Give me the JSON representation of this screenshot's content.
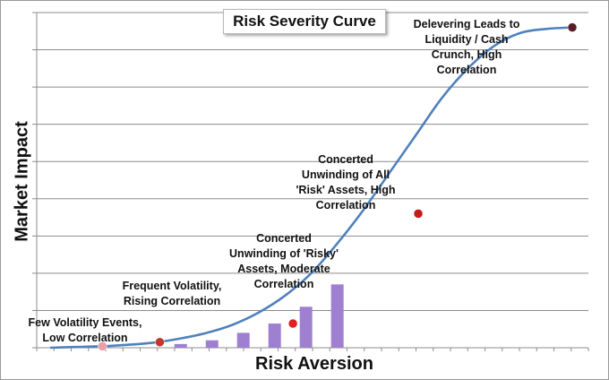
{
  "chart_data": {
    "type": "line",
    "title": "Risk Severity Curve",
    "xlabel": "Risk Aversion",
    "ylabel": "Market Impact",
    "grid": true,
    "legend": "none",
    "ylim": [
      0,
      9
    ],
    "xlim": [
      0,
      10
    ],
    "curve": {
      "color": "#4f81bd",
      "x": [
        0.0,
        0.5,
        1.0,
        1.5,
        2.0,
        2.5,
        3.0,
        3.5,
        4.0,
        4.5,
        5.0,
        5.5,
        6.0,
        6.5,
        7.0,
        7.5,
        8.0,
        8.5,
        9.0,
        9.5,
        10.0
      ],
      "y": [
        0.0,
        0.02,
        0.04,
        0.08,
        0.14,
        0.25,
        0.4,
        0.62,
        0.95,
        1.4,
        2.0,
        2.8,
        3.7,
        4.7,
        5.7,
        6.7,
        7.5,
        8.1,
        8.45,
        8.56,
        8.6
      ]
    },
    "bars": {
      "color": "#9f7fd0",
      "x": [
        2.5,
        3.1,
        3.7,
        4.3,
        4.9,
        5.5
      ],
      "values": [
        0.1,
        0.2,
        0.4,
        0.65,
        1.1,
        1.7
      ]
    },
    "points": [
      {
        "x": 1.0,
        "y": 0.04,
        "color": "#e8a0a8"
      },
      {
        "x": 2.1,
        "y": 0.15,
        "color": "#c0392b"
      },
      {
        "x": 4.65,
        "y": 0.65,
        "color": "#e02020"
      },
      {
        "x": 7.05,
        "y": 3.6,
        "color": "#c81818"
      },
      {
        "x": 10.0,
        "y": 8.6,
        "color": "#5a1b2a"
      }
    ],
    "annotations": [
      {
        "lines": [
          "Few Volatility Events,",
          "Low Correlation"
        ]
      },
      {
        "lines": [
          "Frequent Volatility,",
          "Rising Correlation"
        ]
      },
      {
        "lines": [
          "Concerted",
          "Unwinding of 'Risky'",
          "Assets, Moderate",
          "Correlation"
        ]
      },
      {
        "lines": [
          "Concerted",
          "Unwinding of All",
          "'Risk' Assets, High",
          "Correlation"
        ]
      },
      {
        "lines": [
          "Delevering Leads to",
          "Liquidity / Cash",
          "Crunch, High",
          "Correlation"
        ]
      }
    ]
  }
}
